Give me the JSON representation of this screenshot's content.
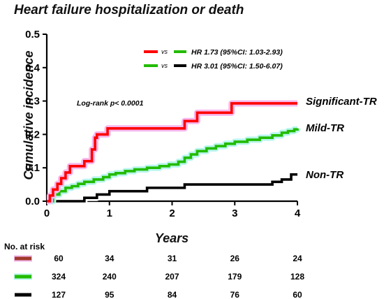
{
  "chart_data": {
    "type": "line",
    "title": "Heart failure hospitalization or death",
    "xlabel": "Years",
    "ylabel": "Cumulative incidence",
    "xlim": [
      0,
      4
    ],
    "ylim": [
      0,
      0.5
    ],
    "x_ticks": [
      "0",
      "1",
      "2",
      "3",
      "4"
    ],
    "y_ticks": [
      "0.0",
      "0.1",
      "0.2",
      "0.3",
      "0.4",
      "0.5"
    ],
    "grid": false,
    "step": true,
    "annotation": "Log-rank p< 0.0001",
    "legend": {
      "position": "top-center",
      "vs_label": "vs",
      "rows": [
        {
          "from_color": "#ff0000",
          "to_color": "#22bb00",
          "text": "HR 1.73 (95%CI: 1.03-2.93)"
        },
        {
          "from_color": "#22bb00",
          "to_color": "#000000",
          "text": "HR 3.01 (95%CI: 1.50-6.07)"
        }
      ]
    },
    "series": [
      {
        "name": "Significant-TR",
        "color": "#ff0000",
        "band_color": "#f5b8ee",
        "x": [
          0,
          0.05,
          0.1,
          0.17,
          0.23,
          0.3,
          0.37,
          0.45,
          0.6,
          0.72,
          0.77,
          0.8,
          0.97,
          2.2,
          2.4,
          2.95,
          4.0
        ],
        "y": [
          0,
          0.017,
          0.035,
          0.052,
          0.069,
          0.086,
          0.105,
          0.105,
          0.12,
          0.155,
          0.19,
          0.2,
          0.218,
          0.24,
          0.265,
          0.293,
          0.293
        ]
      },
      {
        "name": "Mild-TR",
        "color": "#22bb00",
        "band_color": "#b8f5ee",
        "x": [
          0,
          0.1,
          0.2,
          0.3,
          0.4,
          0.5,
          0.6,
          0.75,
          0.9,
          1.0,
          1.1,
          1.25,
          1.4,
          1.6,
          1.8,
          1.95,
          2.1,
          2.2,
          2.3,
          2.4,
          2.55,
          2.7,
          2.85,
          3.0,
          3.2,
          3.4,
          3.6,
          3.75,
          3.85,
          3.95,
          4.0
        ],
        "y": [
          0,
          0.02,
          0.03,
          0.04,
          0.045,
          0.052,
          0.058,
          0.065,
          0.072,
          0.08,
          0.084,
          0.09,
          0.095,
          0.1,
          0.105,
          0.11,
          0.118,
          0.13,
          0.14,
          0.15,
          0.158,
          0.165,
          0.172,
          0.178,
          0.184,
          0.19,
          0.197,
          0.205,
          0.21,
          0.215,
          0.218
        ]
      },
      {
        "name": "Non-TR",
        "color": "#000000",
        "band_color": "#ffffff",
        "x": [
          0,
          0.5,
          0.6,
          0.8,
          1.0,
          1.3,
          1.6,
          2.2,
          3.0,
          3.5,
          3.6,
          3.75,
          3.9,
          4.0
        ],
        "y": [
          0,
          0,
          0.01,
          0.02,
          0.03,
          0.03,
          0.04,
          0.05,
          0.05,
          0.05,
          0.058,
          0.065,
          0.08,
          0.08
        ]
      }
    ],
    "risk_table": {
      "title": "No. at risk",
      "times": [
        0,
        1,
        2,
        3,
        4
      ],
      "rows": [
        {
          "color": "#a0392c",
          "glow": "#f5b8ee",
          "values": [
            "60",
            "34",
            "31",
            "26",
            "24"
          ]
        },
        {
          "color": "#22bb00",
          "glow": "#b8f5ee",
          "values": [
            "324",
            "240",
            "207",
            "179",
            "128"
          ]
        },
        {
          "color": "#000000",
          "glow": "#ffffff",
          "values": [
            "127",
            "95",
            "84",
            "76",
            "60"
          ]
        }
      ]
    }
  }
}
